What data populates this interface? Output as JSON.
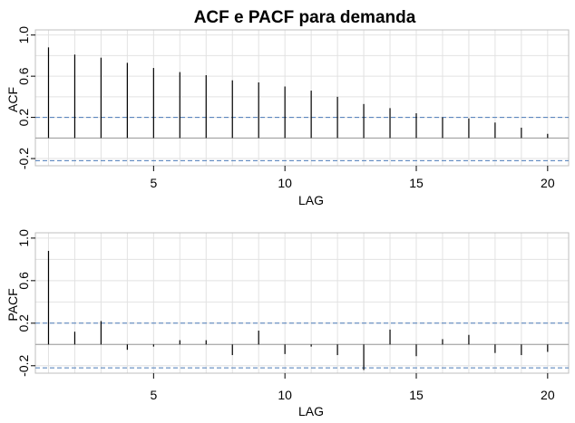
{
  "title": "ACF e PACF para demanda",
  "colors": {
    "bar": "#000000",
    "confidence_line": "#4a7ab8",
    "grid": "#e2e2e2",
    "frame": "#bfbfbf",
    "zero_line": "#9a9a9a"
  },
  "chart_data": [
    {
      "type": "bar",
      "ylabel": "ACF",
      "xlabel": "LAG",
      "xlim": [
        0.5,
        20.8
      ],
      "ylim": [
        -0.27,
        1.05
      ],
      "xticks": [
        5,
        10,
        15,
        20
      ],
      "xtick_labels": [
        "5",
        "10",
        "15",
        "20"
      ],
      "yticks": [
        -0.2,
        0.2,
        0.6,
        1.0
      ],
      "ytick_labels": [
        "-0.2",
        "0.2",
        "0.6",
        "1.0"
      ],
      "confidence_bounds": [
        0.2,
        -0.22
      ],
      "grid": true,
      "x": [
        1,
        2,
        3,
        4,
        5,
        6,
        7,
        8,
        9,
        10,
        11,
        12,
        13,
        14,
        15,
        16,
        17,
        18,
        19,
        20
      ],
      "values": [
        0.88,
        0.81,
        0.78,
        0.73,
        0.68,
        0.64,
        0.61,
        0.56,
        0.54,
        0.5,
        0.46,
        0.4,
        0.33,
        0.29,
        0.24,
        0.2,
        0.19,
        0.15,
        0.1,
        0.04
      ]
    },
    {
      "type": "bar",
      "ylabel": "PACF",
      "xlabel": "LAG",
      "xlim": [
        0.5,
        20.8
      ],
      "ylim": [
        -0.27,
        1.05
      ],
      "xticks": [
        5,
        10,
        15,
        20
      ],
      "xtick_labels": [
        "5",
        "10",
        "15",
        "20"
      ],
      "yticks": [
        -0.2,
        0.2,
        0.6,
        1.0
      ],
      "ytick_labels": [
        "-0.2",
        "0.2",
        "0.6",
        "1.0"
      ],
      "confidence_bounds": [
        0.2,
        -0.22
      ],
      "grid": true,
      "x": [
        1,
        2,
        3,
        4,
        5,
        6,
        7,
        8,
        9,
        10,
        11,
        12,
        13,
        14,
        15,
        16,
        17,
        18,
        19,
        20
      ],
      "values": [
        0.88,
        0.12,
        0.22,
        -0.05,
        -0.02,
        0.04,
        0.04,
        -0.1,
        0.13,
        -0.09,
        -0.02,
        -0.1,
        -0.24,
        0.14,
        -0.11,
        0.05,
        0.09,
        -0.08,
        -0.1,
        -0.07
      ]
    }
  ]
}
